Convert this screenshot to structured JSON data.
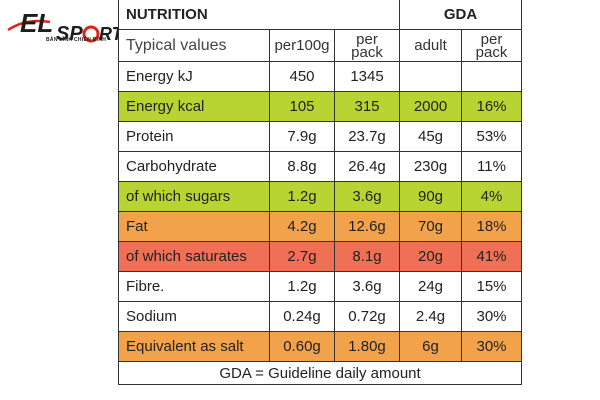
{
  "logo": {
    "brand_text": "ELIPSPORT",
    "tagline": "BẢN LĨNH CHIẾN BINH",
    "colors": {
      "dark": "#1d1d1b",
      "red": "#e2231a"
    }
  },
  "table": {
    "header": {
      "nutrition": "NUTRITION",
      "gda": "GDA"
    },
    "subheader": {
      "typical": "Typical values",
      "per100g": "per100g",
      "perpack_line1": "per",
      "perpack_line2": "pack",
      "adult": "adult",
      "gdaper_line1": "per",
      "gdaper_line2": "pack"
    },
    "rows": [
      {
        "label": "Energy kJ",
        "per100g": "450",
        "perpack": "1345",
        "adult": "",
        "pct": "",
        "color": ""
      },
      {
        "label": "Energy kcal",
        "per100g": "105",
        "perpack": "315",
        "adult": "2000",
        "pct": "16%",
        "color": "#b7d433"
      },
      {
        "label": "Protein",
        "per100g": "7.9g",
        "perpack": "23.7g",
        "adult": "45g",
        "pct": "53%",
        "color": ""
      },
      {
        "label": "Carbohydrate",
        "per100g": "8.8g",
        "perpack": "26.4g",
        "adult": "230g",
        "pct": "11%",
        "color": ""
      },
      {
        "label": "of which sugars",
        "per100g": "1.2g",
        "perpack": "3.6g",
        "adult": "90g",
        "pct": "4%",
        "color": "#b7d433"
      },
      {
        "label": "Fat",
        "per100g": "4.2g",
        "perpack": "12.6g",
        "adult": "70g",
        "pct": "18%",
        "color": "#f3a24c"
      },
      {
        "label": "of which saturates",
        "per100g": "2.7g",
        "perpack": "8.1g",
        "adult": "20g",
        "pct": "41%",
        "color": "#ef7055"
      },
      {
        "label": "Fibre.",
        "per100g": "1.2g",
        "perpack": "3.6g",
        "adult": "24g",
        "pct": "15%",
        "color": ""
      },
      {
        "label": "Sodium",
        "per100g": "0.24g",
        "perpack": "0.72g",
        "adult": "2.4g",
        "pct": "30%",
        "color": ""
      },
      {
        "label": "Equivalent as salt",
        "per100g": "0.60g",
        "perpack": "1.80g",
        "adult": "6g",
        "pct": "30%",
        "color": "#f3a24c"
      }
    ],
    "footer": "GDA = Guideline daily amount"
  }
}
